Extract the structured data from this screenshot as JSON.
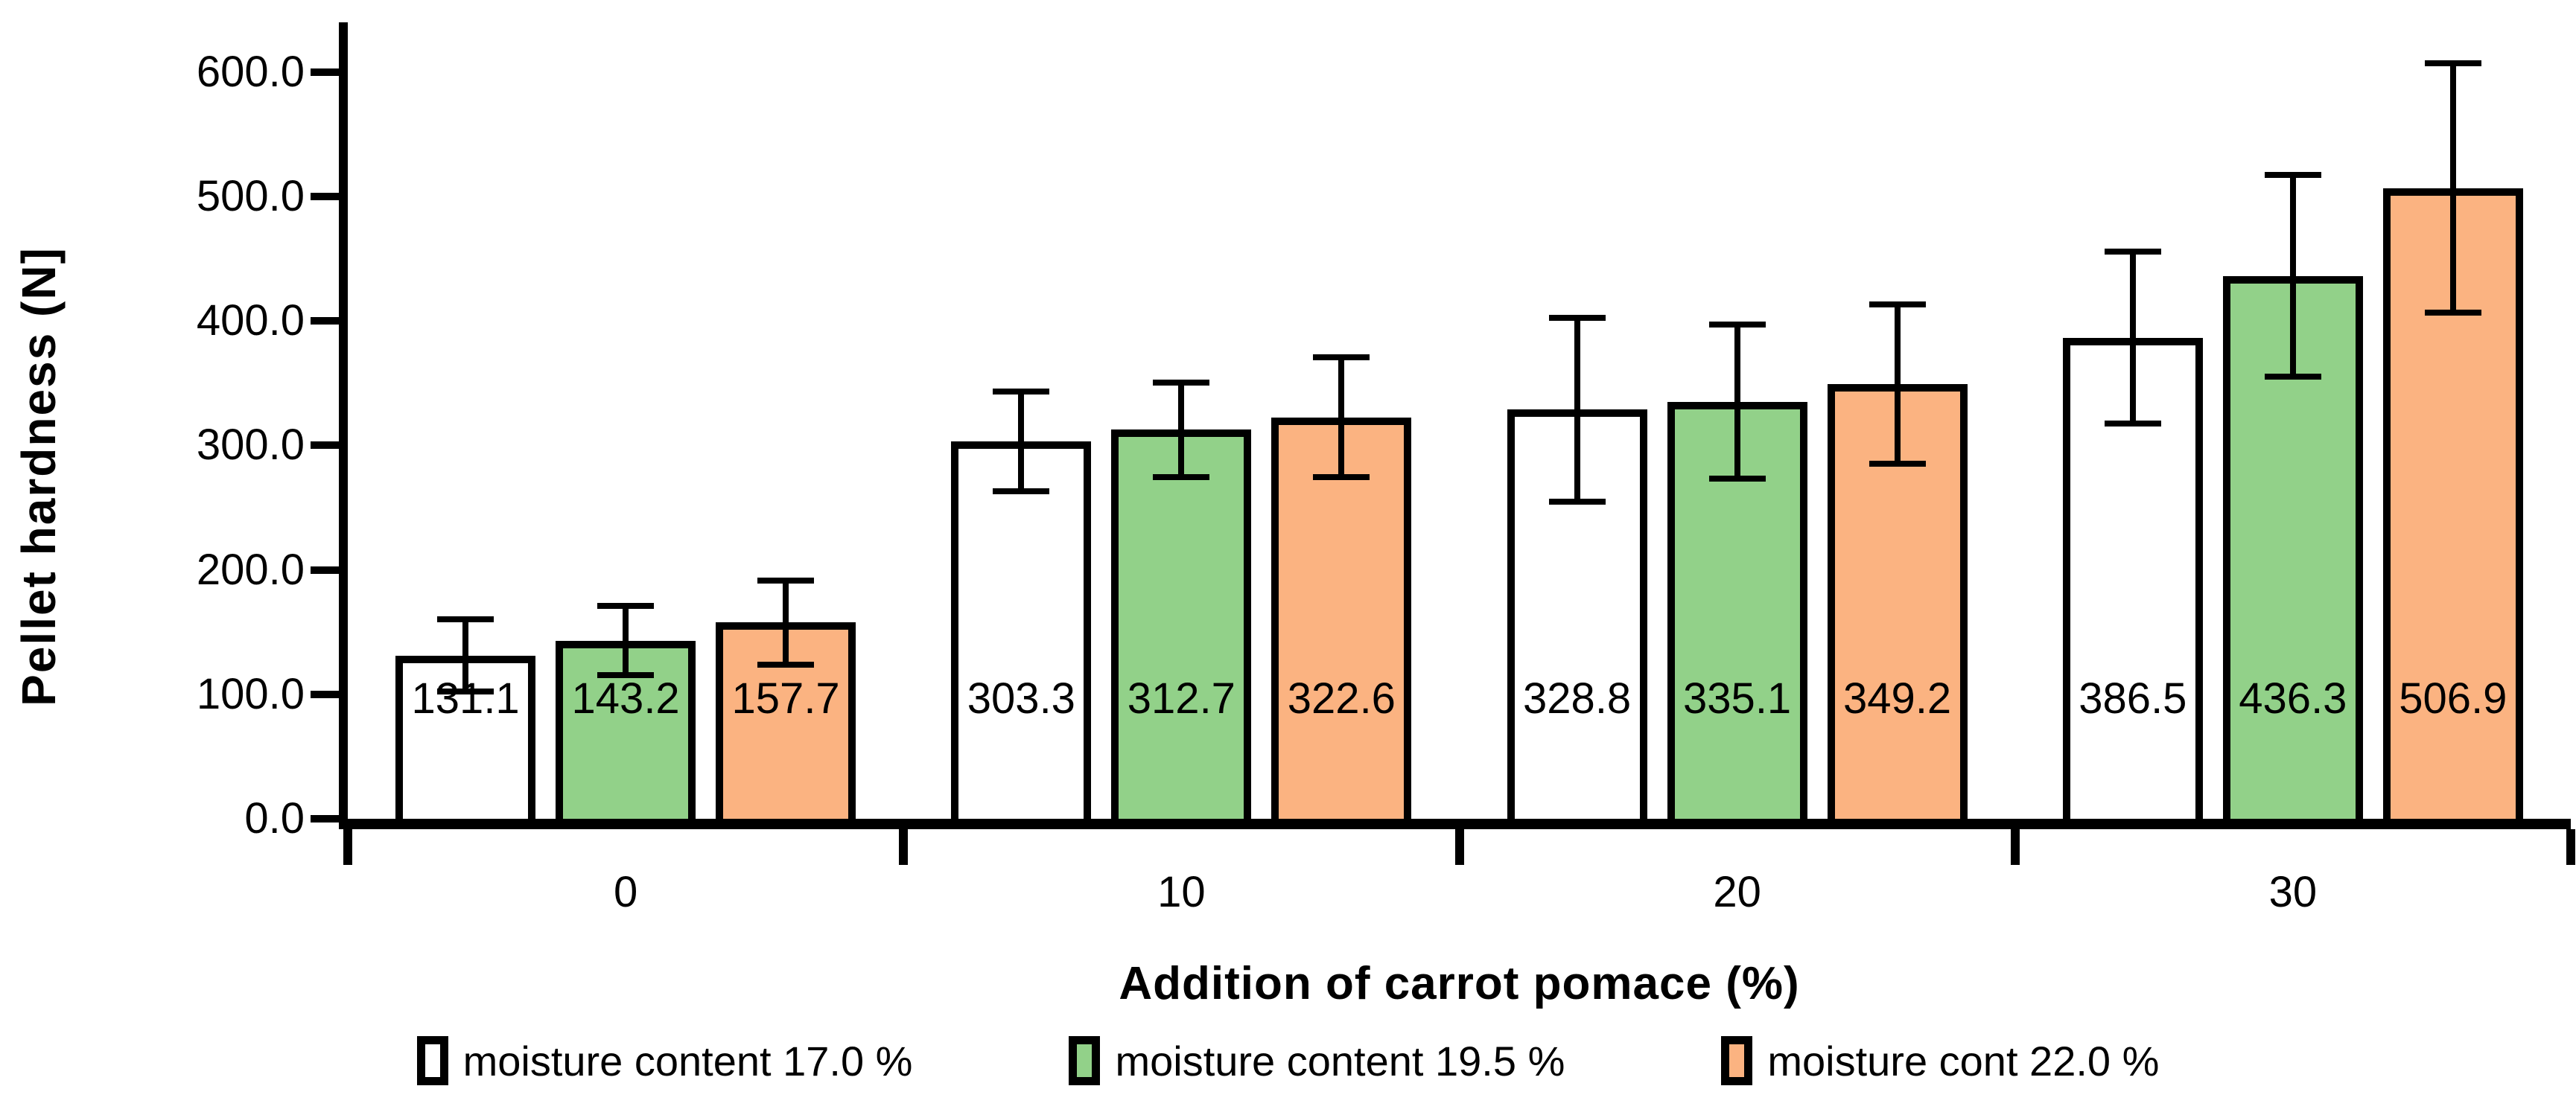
{
  "chart_data": {
    "type": "bar",
    "title": "",
    "xlabel": "Addition of carrot pomace (%)",
    "ylabel": "Pellet hardness (N]",
    "categories": [
      "0",
      "10",
      "20",
      "30"
    ],
    "series": [
      {
        "name": "moisture content 17.0 %",
        "color": "#FFFFFF",
        "values": [
          131.1,
          303.3,
          328.8,
          386.5
        ],
        "errors": [
          29,
          40,
          74,
          69
        ]
      },
      {
        "name": "moisture content 19.5 %",
        "color": "#92D189",
        "values": [
          143.2,
          312.7,
          335.1,
          436.3
        ],
        "errors": [
          28,
          38,
          62,
          81
        ]
      },
      {
        "name": "moisture cont 22.0 %",
        "color": "#FBB381",
        "values": [
          157.7,
          322.6,
          349.2,
          506.9
        ],
        "errors": [
          34,
          48,
          64,
          100
        ]
      }
    ],
    "y_ticks": [
      {
        "value": 0,
        "label": "0.0"
      },
      {
        "value": 100,
        "label": "100.0"
      },
      {
        "value": 200,
        "label": "200.0"
      },
      {
        "value": 300,
        "label": "300.0"
      },
      {
        "value": 400,
        "label": "400.0"
      },
      {
        "value": 500,
        "label": "500.0"
      },
      {
        "value": 600,
        "label": "600.0"
      }
    ],
    "ylim": [
      0,
      640
    ],
    "grid": false,
    "legend_position": "bottom",
    "data_labels": true,
    "bar_outline_color": "#000000",
    "error_bar_color": "#000000",
    "axis_color": "#000000"
  }
}
